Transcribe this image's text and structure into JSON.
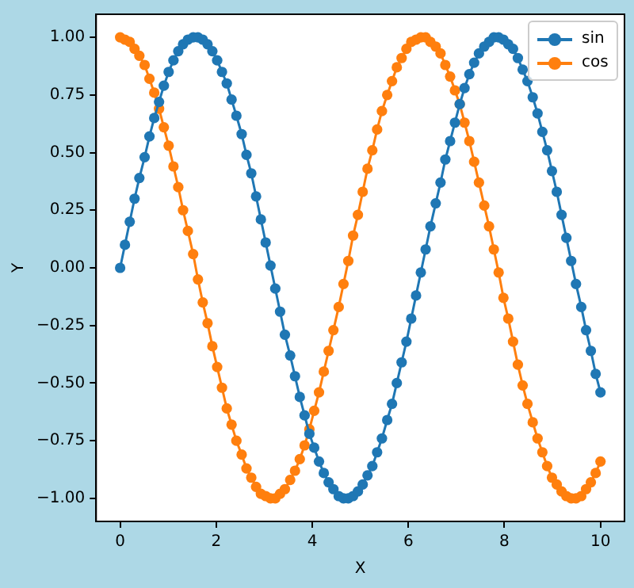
{
  "chart_data": {
    "type": "line",
    "xlabel": "X",
    "ylabel": "Y",
    "x": [
      0,
      0.1,
      0.2,
      0.3,
      0.4,
      0.51,
      0.61,
      0.71,
      0.81,
      0.91,
      1.01,
      1.11,
      1.21,
      1.31,
      1.41,
      1.52,
      1.62,
      1.72,
      1.82,
      1.92,
      2.02,
      2.12,
      2.22,
      2.32,
      2.42,
      2.53,
      2.63,
      2.73,
      2.83,
      2.93,
      3.03,
      3.13,
      3.23,
      3.33,
      3.43,
      3.54,
      3.64,
      3.74,
      3.84,
      3.94,
      4.04,
      4.14,
      4.24,
      4.34,
      4.44,
      4.55,
      4.65,
      4.75,
      4.85,
      4.95,
      5.05,
      5.15,
      5.25,
      5.35,
      5.45,
      5.56,
      5.66,
      5.76,
      5.86,
      5.96,
      6.06,
      6.16,
      6.26,
      6.36,
      6.46,
      6.57,
      6.67,
      6.77,
      6.87,
      6.97,
      7.07,
      7.17,
      7.27,
      7.37,
      7.47,
      7.58,
      7.68,
      7.78,
      7.88,
      7.98,
      8.08,
      8.18,
      8.28,
      8.38,
      8.48,
      8.59,
      8.69,
      8.79,
      8.89,
      8.99,
      9.09,
      9.19,
      9.29,
      9.39,
      9.49,
      9.6,
      9.7,
      9.8,
      9.9,
      10
    ],
    "series": [
      {
        "name": "sin",
        "color": "#1f77b4",
        "values": [
          0,
          0.1,
          0.2,
          0.3,
          0.39,
          0.48,
          0.57,
          0.65,
          0.72,
          0.79,
          0.85,
          0.9,
          0.94,
          0.97,
          0.99,
          1,
          1,
          0.99,
          0.97,
          0.94,
          0.9,
          0.85,
          0.8,
          0.73,
          0.66,
          0.58,
          0.49,
          0.41,
          0.31,
          0.21,
          0.11,
          0.01,
          -0.09,
          -0.19,
          -0.29,
          -0.38,
          -0.47,
          -0.56,
          -0.64,
          -0.72,
          -0.78,
          -0.84,
          -0.89,
          -0.93,
          -0.96,
          -0.99,
          -1,
          -1,
          -0.99,
          -0.97,
          -0.94,
          -0.9,
          -0.86,
          -0.8,
          -0.74,
          -0.66,
          -0.59,
          -0.5,
          -0.41,
          -0.32,
          -0.22,
          -0.12,
          -0.02,
          0.08,
          0.18,
          0.28,
          0.37,
          0.47,
          0.55,
          0.63,
          0.71,
          0.78,
          0.84,
          0.89,
          0.93,
          0.96,
          0.98,
          1,
          1,
          0.99,
          0.97,
          0.95,
          0.91,
          0.86,
          0.81,
          0.74,
          0.67,
          0.59,
          0.51,
          0.42,
          0.33,
          0.23,
          0.13,
          0.03,
          -0.07,
          -0.17,
          -0.27,
          -0.36,
          -0.46,
          -0.54
        ]
      },
      {
        "name": "cos",
        "color": "#ff7f0e",
        "values": [
          1,
          0.99,
          0.98,
          0.95,
          0.92,
          0.88,
          0.82,
          0.76,
          0.69,
          0.61,
          0.53,
          0.44,
          0.35,
          0.25,
          0.16,
          0.06,
          -0.05,
          -0.15,
          -0.24,
          -0.34,
          -0.43,
          -0.52,
          -0.61,
          -0.68,
          -0.75,
          -0.81,
          -0.87,
          -0.91,
          -0.95,
          -0.98,
          -0.99,
          -1,
          -1,
          -0.98,
          -0.96,
          -0.92,
          -0.88,
          -0.83,
          -0.77,
          -0.7,
          -0.62,
          -0.54,
          -0.45,
          -0.36,
          -0.27,
          -0.17,
          -0.07,
          0.03,
          0.14,
          0.23,
          0.33,
          0.43,
          0.51,
          0.6,
          0.68,
          0.75,
          0.81,
          0.87,
          0.91,
          0.95,
          0.98,
          0.99,
          1,
          1,
          0.98,
          0.96,
          0.93,
          0.88,
          0.83,
          0.77,
          0.71,
          0.63,
          0.55,
          0.46,
          0.37,
          0.27,
          0.18,
          0.08,
          -0.02,
          -0.13,
          -0.22,
          -0.32,
          -0.42,
          -0.51,
          -0.59,
          -0.67,
          -0.74,
          -0.8,
          -0.86,
          -0.91,
          -0.94,
          -0.97,
          -0.99,
          -1,
          -1,
          -0.99,
          -0.96,
          -0.93,
          -0.89,
          -0.84
        ]
      }
    ],
    "xlim": [
      -0.5,
      10.5
    ],
    "ylim": [
      -1.1,
      1.1
    ],
    "xticks": [
      0,
      2,
      4,
      6,
      8,
      10
    ],
    "yticks": [
      {
        "value": -1,
        "label": "−1.00"
      },
      {
        "value": -0.75,
        "label": "−0.75"
      },
      {
        "value": -0.5,
        "label": "−0.50"
      },
      {
        "value": -0.25,
        "label": "−0.25"
      },
      {
        "value": 0,
        "label": "0.00"
      },
      {
        "value": 0.25,
        "label": "0.25"
      },
      {
        "value": 0.5,
        "label": "0.50"
      },
      {
        "value": 0.75,
        "label": "0.75"
      },
      {
        "value": 1,
        "label": "1.00"
      }
    ],
    "grid": false,
    "legend": "top right",
    "marker": "circle",
    "line_style": "solid"
  }
}
